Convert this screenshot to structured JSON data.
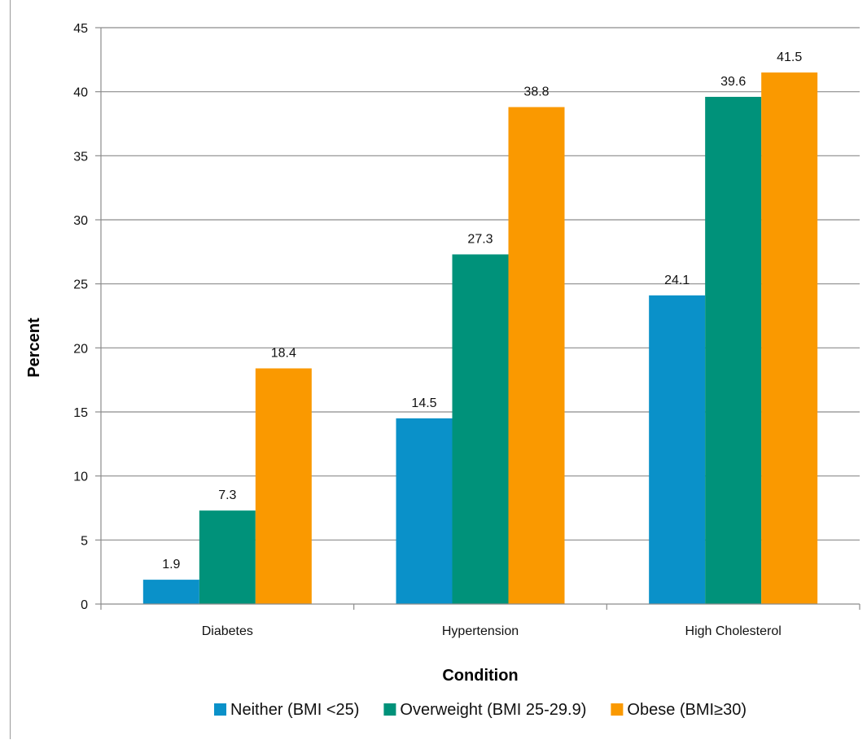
{
  "chart_data": {
    "type": "bar",
    "title": "",
    "xlabel": "Condition",
    "ylabel": "Percent",
    "categories": [
      "Diabetes",
      "Hypertension",
      "High Cholesterol"
    ],
    "series": [
      {
        "name": "Neither (BMI <25)",
        "color": "#0a91c9",
        "values": [
          1.9,
          14.5,
          24.1
        ]
      },
      {
        "name": "Overweight (BMI 25-29.9)",
        "color": "#00927a",
        "values": [
          7.3,
          27.3,
          39.6
        ]
      },
      {
        "name": "Obese (BMI≥30)",
        "color": "#fa9900",
        "values": [
          18.4,
          38.8,
          41.5
        ]
      }
    ],
    "ylim": [
      0,
      45
    ],
    "yticks": [
      0,
      5,
      10,
      15,
      20,
      25,
      30,
      35,
      40,
      45
    ],
    "grid": true,
    "legend_position": "bottom",
    "data_labels": true
  }
}
